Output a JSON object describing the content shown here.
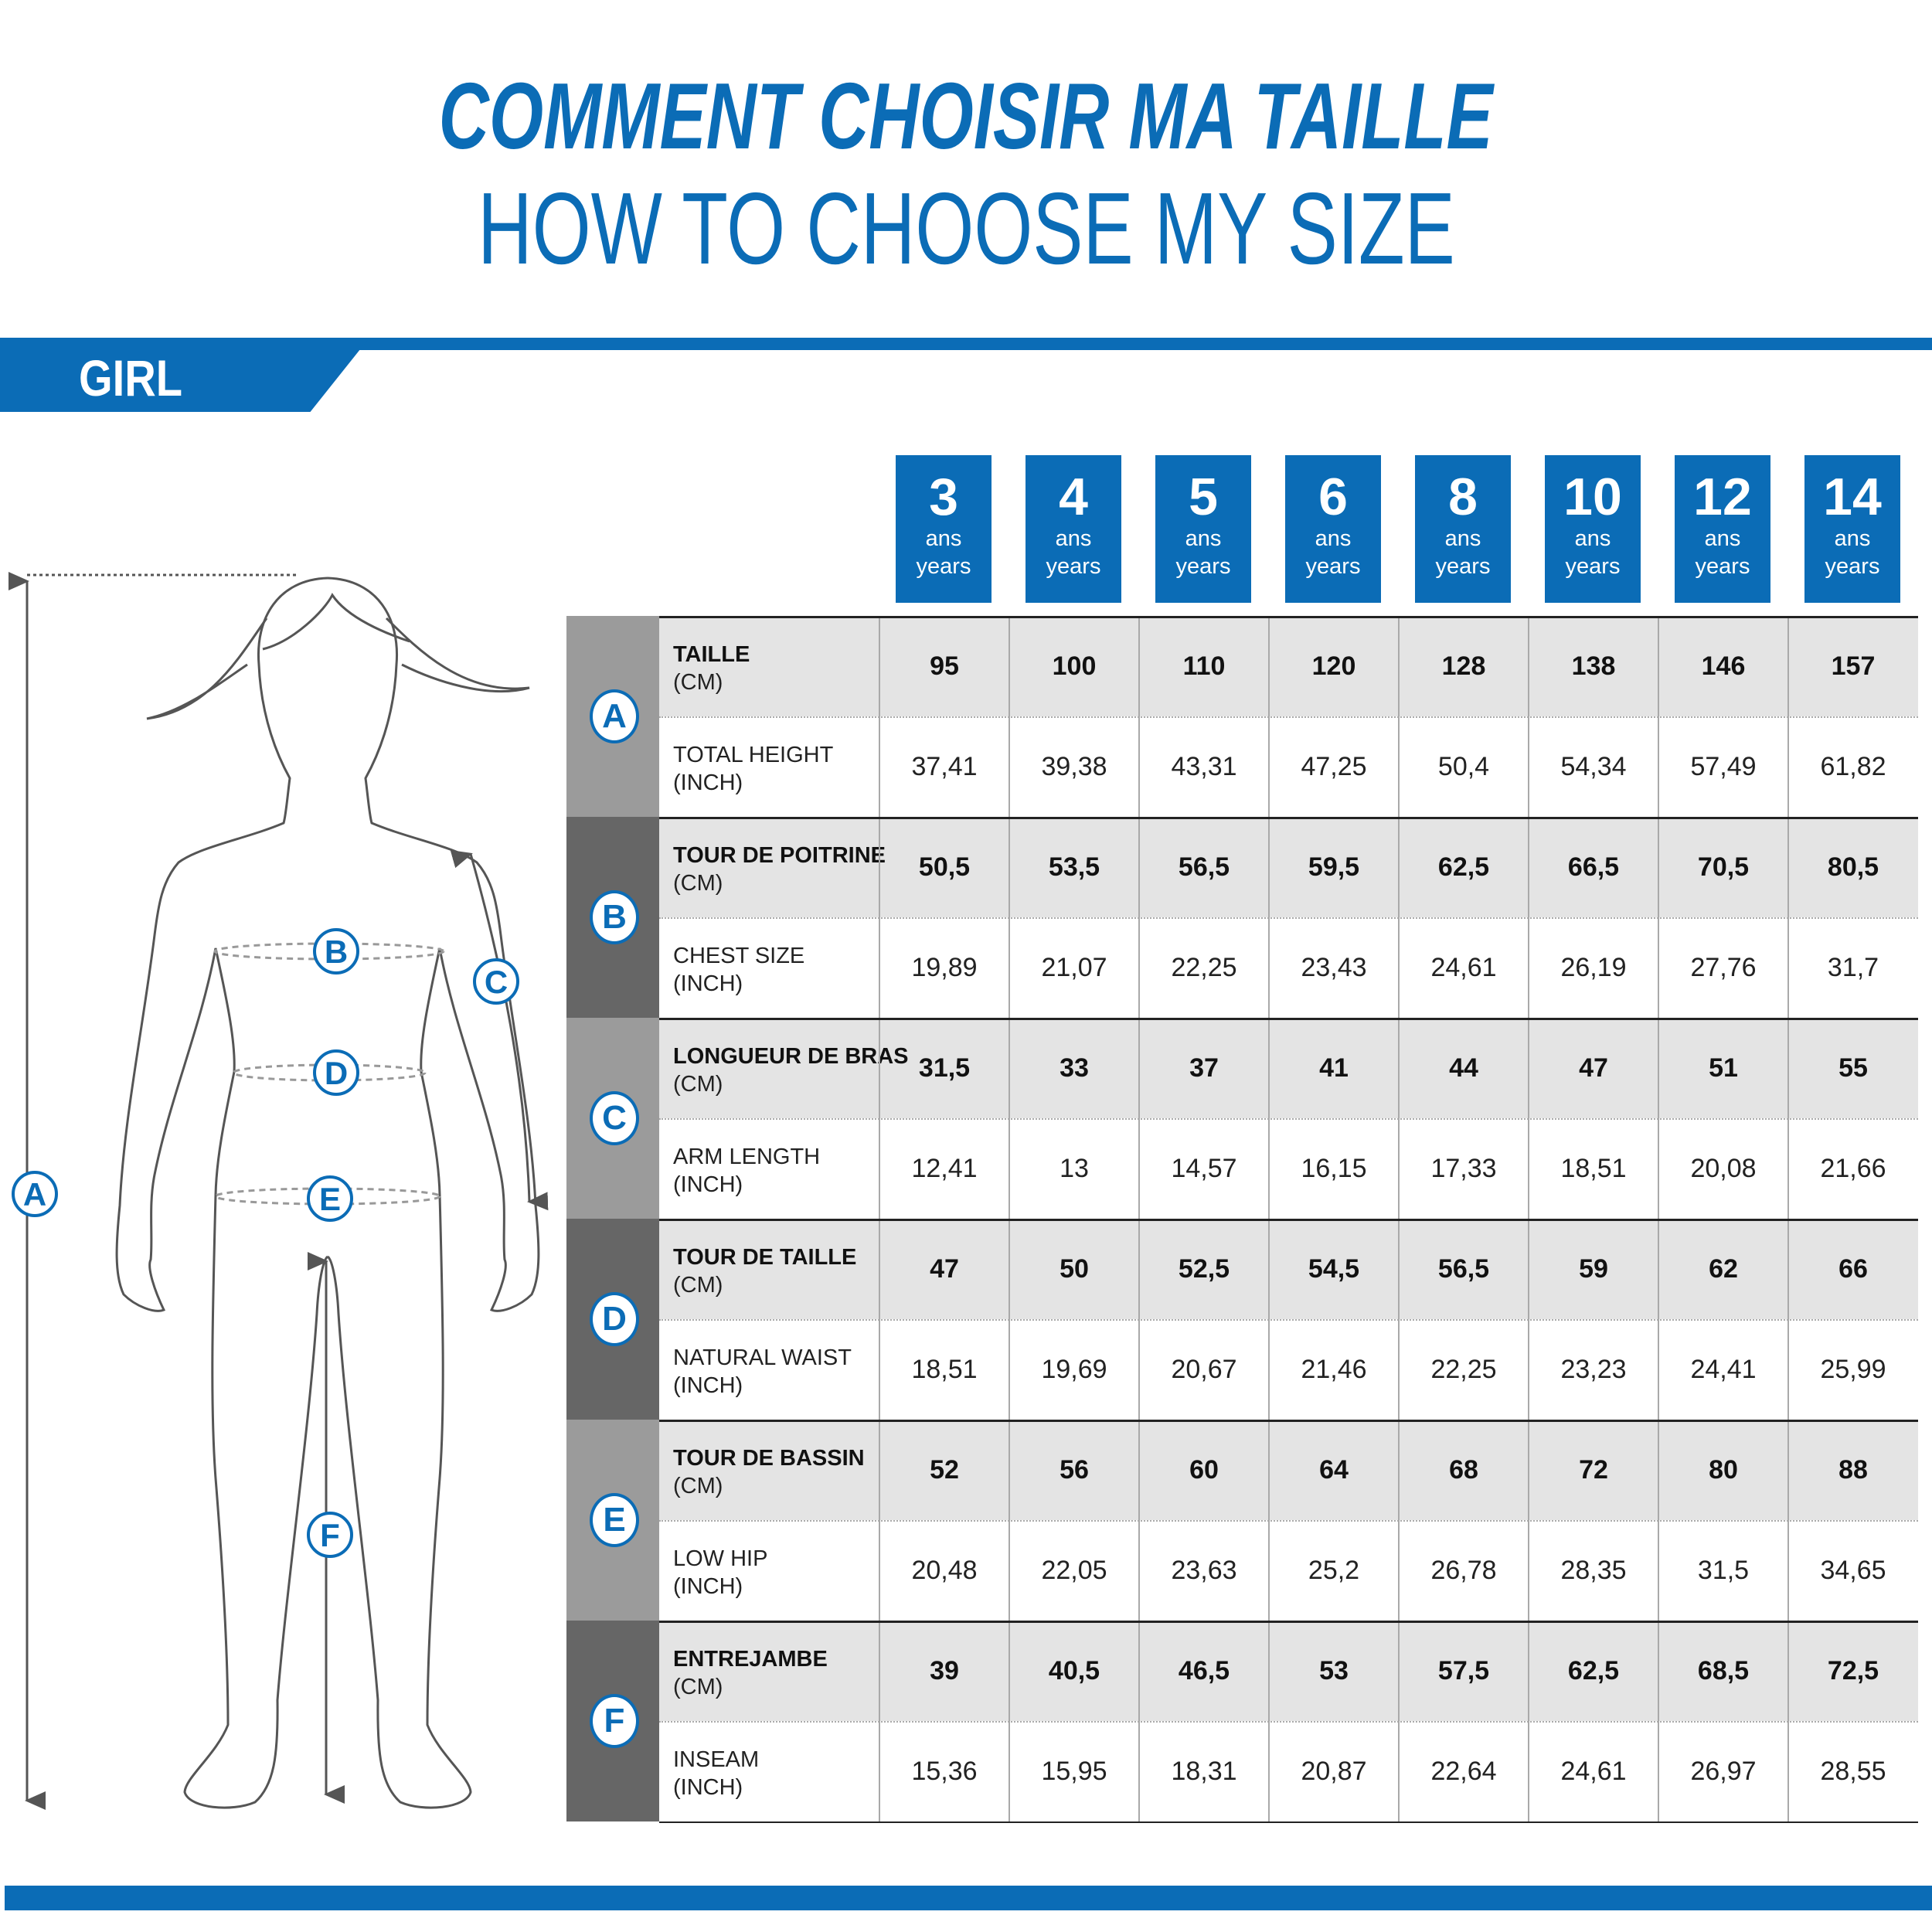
{
  "header": {
    "title_fr": "COMMENT CHOISIR MA TAILLE",
    "title_en": "HOW TO CHOOSE MY SIZE"
  },
  "section": {
    "label": "GIRL"
  },
  "colors": {
    "brand_blue": "#0b6cb6",
    "group_light": "#9b9b9b",
    "group_dark": "#666666",
    "row_shade": "#e4e4e4"
  },
  "sizes": [
    {
      "num": "3",
      "fr": "ans",
      "en": "years"
    },
    {
      "num": "4",
      "fr": "ans",
      "en": "years"
    },
    {
      "num": "5",
      "fr": "ans",
      "en": "years"
    },
    {
      "num": "6",
      "fr": "ans",
      "en": "years"
    },
    {
      "num": "8",
      "fr": "ans",
      "en": "years"
    },
    {
      "num": "10",
      "fr": "ans",
      "en": "years"
    },
    {
      "num": "12",
      "fr": "ans",
      "en": "years"
    },
    {
      "num": "14",
      "fr": "ans",
      "en": "years"
    }
  ],
  "groups": [
    {
      "letter": "A",
      "rows": [
        {
          "label": "TAILLE",
          "unit": "(CM)",
          "values": [
            "95",
            "100",
            "110",
            "120",
            "128",
            "138",
            "146",
            "157"
          ]
        },
        {
          "label": "TOTAL HEIGHT",
          "unit": "(INCH)",
          "values": [
            "37,41",
            "39,38",
            "43,31",
            "47,25",
            "50,4",
            "54,34",
            "57,49",
            "61,82"
          ]
        }
      ]
    },
    {
      "letter": "B",
      "rows": [
        {
          "label": "TOUR DE POITRINE",
          "unit": "(CM)",
          "values": [
            "50,5",
            "53,5",
            "56,5",
            "59,5",
            "62,5",
            "66,5",
            "70,5",
            "80,5"
          ]
        },
        {
          "label": "CHEST SIZE",
          "unit": "(INCH)",
          "values": [
            "19,89",
            "21,07",
            "22,25",
            "23,43",
            "24,61",
            "26,19",
            "27,76",
            "31,7"
          ]
        }
      ]
    },
    {
      "letter": "C",
      "rows": [
        {
          "label": "LONGUEUR DE BRAS",
          "unit": "(CM)",
          "values": [
            "31,5",
            "33",
            "37",
            "41",
            "44",
            "47",
            "51",
            "55"
          ]
        },
        {
          "label": "ARM LENGTH",
          "unit": "(INCH)",
          "values": [
            "12,41",
            "13",
            "14,57",
            "16,15",
            "17,33",
            "18,51",
            "20,08",
            "21,66"
          ]
        }
      ]
    },
    {
      "letter": "D",
      "rows": [
        {
          "label": "TOUR DE TAILLE",
          "unit": "(CM)",
          "values": [
            "47",
            "50",
            "52,5",
            "54,5",
            "56,5",
            "59",
            "62",
            "66"
          ]
        },
        {
          "label": "NATURAL WAIST",
          "unit": "(INCH)",
          "values": [
            "18,51",
            "19,69",
            "20,67",
            "21,46",
            "22,25",
            "23,23",
            "24,41",
            "25,99"
          ]
        }
      ]
    },
    {
      "letter": "E",
      "rows": [
        {
          "label": "TOUR DE BASSIN",
          "unit": "(CM)",
          "values": [
            "52",
            "56",
            "60",
            "64",
            "68",
            "72",
            "80",
            "88"
          ]
        },
        {
          "label": "LOW HIP",
          "unit": "(INCH)",
          "values": [
            "20,48",
            "22,05",
            "23,63",
            "25,2",
            "26,78",
            "28,35",
            "31,5",
            "34,65"
          ]
        }
      ]
    },
    {
      "letter": "F",
      "rows": [
        {
          "label": "ENTREJAMBE",
          "unit": "(CM)",
          "values": [
            "39",
            "40,5",
            "46,5",
            "53",
            "57,5",
            "62,5",
            "68,5",
            "72,5"
          ]
        },
        {
          "label": "INSEAM",
          "unit": "(INCH)",
          "values": [
            "15,36",
            "15,95",
            "18,31",
            "20,87",
            "22,64",
            "24,61",
            "26,97",
            "28,55"
          ]
        }
      ]
    }
  ]
}
